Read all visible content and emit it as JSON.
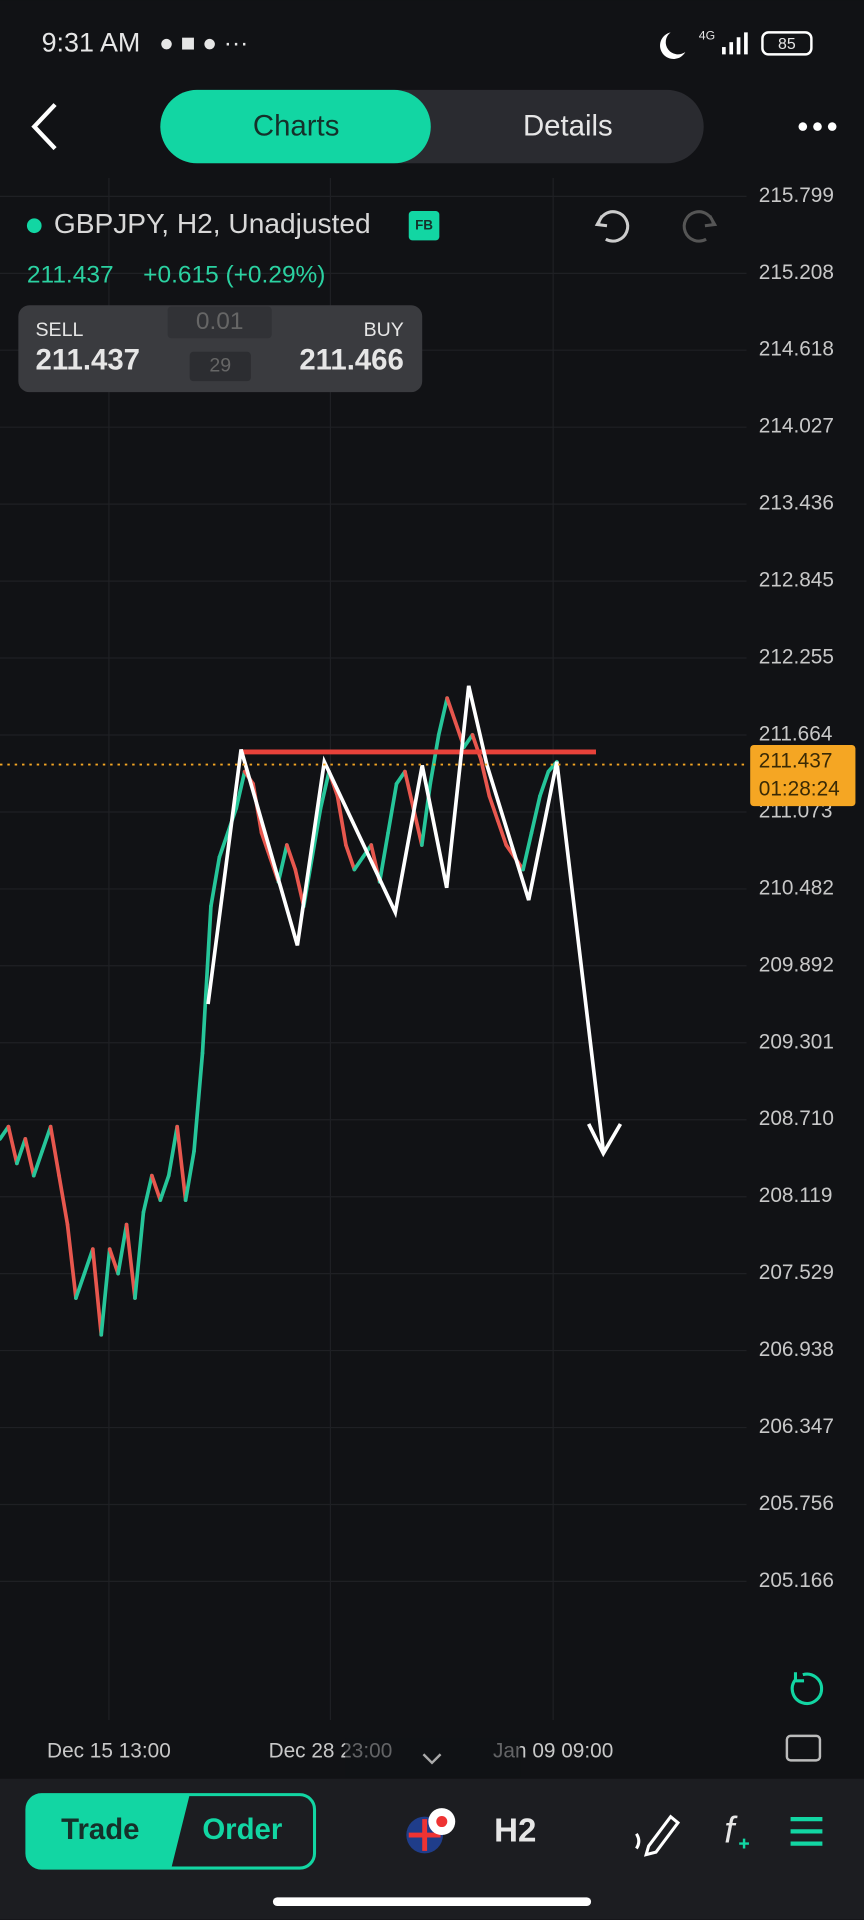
{
  "status_bar": {
    "time": "9:31 AM",
    "network": "4G",
    "battery": "85"
  },
  "tabs": [
    "Charts",
    "Details"
  ],
  "symbol": {
    "name": "GBPJPY, H2, Unadjusted",
    "badge": "FB"
  },
  "quote": {
    "price": "211.437",
    "change": "+0.615 (+0.29%)"
  },
  "trade_box": {
    "sell_label": "SELL",
    "sell": "211.437",
    "lot": "0.01",
    "spread": "29",
    "buy_label": "BUY",
    "buy": "211.466"
  },
  "chart_data": {
    "type": "line",
    "ylim": [
      204.6,
      215.94
    ],
    "yticks": [
      215.799,
      215.208,
      214.618,
      214.027,
      213.436,
      212.845,
      212.255,
      211.664,
      211.073,
      210.482,
      209.892,
      209.301,
      {
        "value": 208.71,
        "label": "208.710"
      },
      208.119,
      207.529,
      206.938,
      206.347,
      205.756,
      205.166
    ],
    "x_labels": [
      "Dec 15 13:00",
      "Dec 28 23:00",
      "Jan 09 09:00"
    ],
    "values": [
      208.563,
      208.657,
      208.375,
      208.563,
      208.281,
      208.469,
      208.657,
      208.281,
      207.905,
      207.341,
      207.529,
      207.717,
      207.059,
      207.717,
      207.529,
      207.905,
      207.341,
      207.999,
      208.281,
      208.093,
      208.281,
      208.657,
      208.093,
      208.469,
      209.221,
      210.349,
      210.725,
      210.913,
      211.101,
      211.383,
      211.289,
      210.913,
      210.725,
      210.537,
      210.819,
      210.631,
      210.349,
      210.725,
      211.101,
      211.383,
      211.195,
      210.819,
      210.631,
      210.725,
      210.819,
      210.537,
      210.913,
      211.289,
      211.383,
      211.101,
      210.819,
      211.289,
      211.665,
      211.947,
      211.759,
      211.571,
      211.665,
      211.477,
      211.195,
      211.007,
      210.819,
      210.725,
      210.631,
      210.913,
      211.195,
      211.383,
      211.458
    ],
    "up_color": "#26c69a",
    "down_color": "#e8574e",
    "current_price": 211.437,
    "countdown": "01:28:24",
    "grid": true
  },
  "bottom_bar": {
    "trade": "Trade",
    "order": "Order",
    "timeframe": "H2"
  }
}
